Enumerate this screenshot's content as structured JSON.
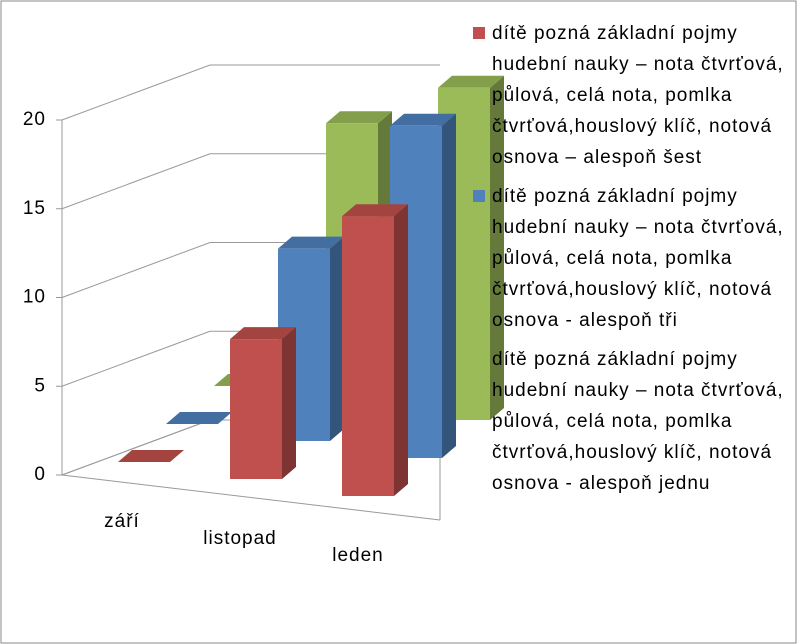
{
  "chart_data": {
    "type": "bar3d",
    "categories": [
      "září",
      "listopad",
      "leden"
    ],
    "series": [
      {
        "name": "dítě pozná základní pojmy hudební nauky – nota čtvrťová, půlová, celá nota, pomlka čtvrťová,houslový klíč, notová osnova – alespoň šest",
        "color": "#c0504d",
        "values": [
          0,
          8,
          16
        ]
      },
      {
        "name": "dítě pozná základní pojmy hudební nauky – nota čtvrťová, půlová, celá nota, pomlka čtvrťová,houslový klíč, notová osnova  - alespoň tři",
        "color": "#4f81bd",
        "values": [
          0,
          11,
          19
        ]
      },
      {
        "name": "dítě pozná základní pojmy hudební nauky – nota čtvrťová, půlová, celá nota, pomlka čtvrťová,houslový klíč, notová osnova  - alespoň jednu",
        "color": "#9bbb59",
        "values": [
          0,
          16,
          19
        ]
      }
    ],
    "ylim": [
      0,
      20
    ],
    "yticks": [
      0,
      5,
      10,
      15,
      20
    ],
    "grid": true,
    "legend": "right"
  }
}
